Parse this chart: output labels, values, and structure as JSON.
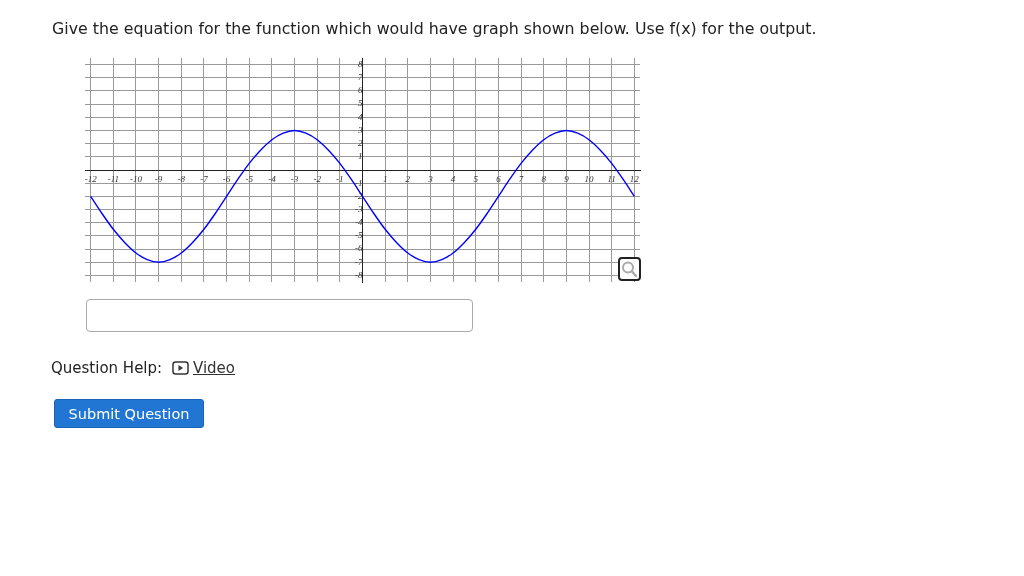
{
  "chart_data": {
    "type": "line",
    "title": "Give the equation for the function which would have graph shown below. Use f(x) for the output.",
    "x": [
      -12,
      -11.5,
      -11,
      -10.5,
      -10,
      -9.5,
      -9,
      -8.5,
      -8,
      -7.5,
      -7,
      -6.5,
      -6,
      -5.5,
      -5,
      -4.5,
      -4,
      -3.5,
      -3,
      -2.5,
      -2,
      -1.5,
      -1,
      -0.5,
      0,
      0.5,
      1,
      1.5,
      2,
      2.5,
      3,
      3.5,
      4,
      4.5,
      5,
      5.5,
      6,
      6.5,
      7,
      7.5,
      8,
      8.5,
      9,
      9.5,
      10,
      10.5,
      11,
      11.5,
      12
    ],
    "values": [
      -2,
      -3.3,
      -4.5,
      -5.5,
      -6.3,
      -6.8,
      -7,
      -6.8,
      -6.3,
      -5.5,
      -4.5,
      -3.3,
      -2,
      -0.7,
      0.5,
      1.5,
      2.3,
      2.8,
      3,
      2.8,
      2.3,
      1.5,
      0.5,
      -0.7,
      -2,
      -3.3,
      -4.5,
      -5.5,
      -6.3,
      -6.8,
      -7,
      -6.8,
      -6.3,
      -5.5,
      -4.5,
      -3.3,
      -2,
      -0.7,
      0.5,
      1.5,
      2.3,
      2.8,
      3,
      2.8,
      2.3,
      1.5,
      0.5,
      -0.7,
      -2
    ],
    "color": "#0000ff",
    "xlim": [
      -12.25,
      12.25
    ],
    "ylim": [
      -8.5,
      8.5
    ],
    "xticks": [
      -12,
      -11,
      -10,
      -9,
      -8,
      -7,
      -6,
      -5,
      -4,
      -3,
      -2,
      -1,
      1,
      2,
      3,
      4,
      5,
      6,
      7,
      8,
      9,
      10,
      11,
      12
    ],
    "yticks": [
      -8,
      -7,
      -6,
      -5,
      -4,
      -3,
      -2,
      -1,
      1,
      2,
      3,
      4,
      5,
      6,
      7,
      8
    ],
    "grid": true,
    "annotations": [
      "Question Help:",
      "Video",
      "Submit Question"
    ]
  }
}
